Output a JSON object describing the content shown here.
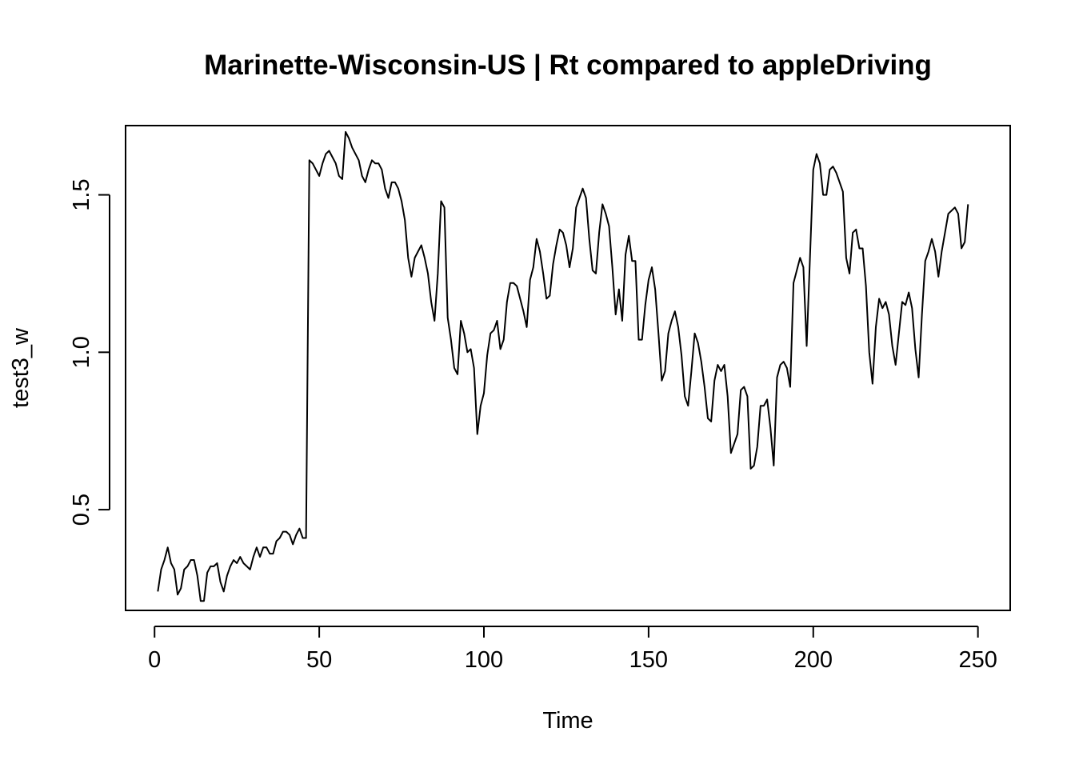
{
  "chart_data": {
    "type": "line",
    "title": "Marinette-Wisconsin-US | Rt compared to appleDriving",
    "xlabel": "Time",
    "ylabel": "test3_w",
    "xlim": [
      -8.8,
      259.8
    ],
    "ylim": [
      0.18,
      1.72
    ],
    "x_ticks": [
      0,
      50,
      100,
      150,
      200,
      250
    ],
    "y_ticks": [
      0.5,
      1.0,
      1.5
    ],
    "x_tick_labels": [
      "0",
      "50",
      "100",
      "150",
      "200",
      "250"
    ],
    "y_tick_labels": [
      "0.5",
      "1.0",
      "1.5"
    ],
    "grid": false,
    "line_color": "#000000",
    "x_start": 1,
    "values": [
      0.24,
      0.31,
      0.34,
      0.38,
      0.33,
      0.31,
      0.23,
      0.25,
      0.31,
      0.32,
      0.34,
      0.34,
      0.29,
      0.21,
      0.21,
      0.3,
      0.32,
      0.32,
      0.33,
      0.27,
      0.24,
      0.29,
      0.32,
      0.34,
      0.33,
      0.35,
      0.33,
      0.32,
      0.31,
      0.35,
      0.38,
      0.35,
      0.38,
      0.38,
      0.36,
      0.36,
      0.4,
      0.41,
      0.43,
      0.43,
      0.42,
      0.39,
      0.42,
      0.44,
      0.41,
      0.41,
      1.61,
      1.6,
      1.58,
      1.56,
      1.6,
      1.63,
      1.64,
      1.62,
      1.6,
      1.56,
      1.55,
      1.7,
      1.68,
      1.65,
      1.63,
      1.61,
      1.56,
      1.54,
      1.58,
      1.61,
      1.6,
      1.6,
      1.58,
      1.52,
      1.49,
      1.54,
      1.54,
      1.52,
      1.48,
      1.42,
      1.3,
      1.24,
      1.3,
      1.32,
      1.34,
      1.3,
      1.25,
      1.16,
      1.1,
      1.25,
      1.48,
      1.46,
      1.11,
      1.04,
      0.95,
      0.93,
      1.1,
      1.06,
      1.0,
      1.01,
      0.95,
      0.74,
      0.83,
      0.87,
      0.99,
      1.06,
      1.07,
      1.1,
      1.01,
      1.04,
      1.16,
      1.22,
      1.22,
      1.21,
      1.17,
      1.13,
      1.08,
      1.23,
      1.27,
      1.36,
      1.32,
      1.25,
      1.17,
      1.18,
      1.28,
      1.34,
      1.39,
      1.38,
      1.34,
      1.27,
      1.33,
      1.46,
      1.49,
      1.52,
      1.49,
      1.36,
      1.26,
      1.25,
      1.38,
      1.47,
      1.44,
      1.4,
      1.27,
      1.12,
      1.2,
      1.1,
      1.31,
      1.37,
      1.29,
      1.29,
      1.04,
      1.04,
      1.15,
      1.23,
      1.27,
      1.2,
      1.06,
      0.91,
      0.94,
      1.06,
      1.1,
      1.13,
      1.08,
      0.99,
      0.86,
      0.83,
      0.94,
      1.06,
      1.03,
      0.97,
      0.89,
      0.79,
      0.78,
      0.91,
      0.96,
      0.94,
      0.96,
      0.86,
      0.68,
      0.71,
      0.74,
      0.88,
      0.89,
      0.86,
      0.63,
      0.64,
      0.7,
      0.83,
      0.83,
      0.85,
      0.76,
      0.64,
      0.92,
      0.96,
      0.97,
      0.95,
      0.89,
      1.22,
      1.26,
      1.3,
      1.27,
      1.02,
      1.3,
      1.58,
      1.63,
      1.6,
      1.5,
      1.5,
      1.58,
      1.59,
      1.57,
      1.54,
      1.51,
      1.3,
      1.25,
      1.38,
      1.39,
      1.33,
      1.33,
      1.21,
      1.0,
      0.9,
      1.08,
      1.17,
      1.14,
      1.16,
      1.12,
      1.02,
      0.96,
      1.06,
      1.16,
      1.15,
      1.19,
      1.14,
      1.01,
      0.92,
      1.12,
      1.29,
      1.32,
      1.36,
      1.32,
      1.24,
      1.32,
      1.38,
      1.44,
      1.45,
      1.46,
      1.44,
      1.33,
      1.35,
      1.47
    ]
  }
}
